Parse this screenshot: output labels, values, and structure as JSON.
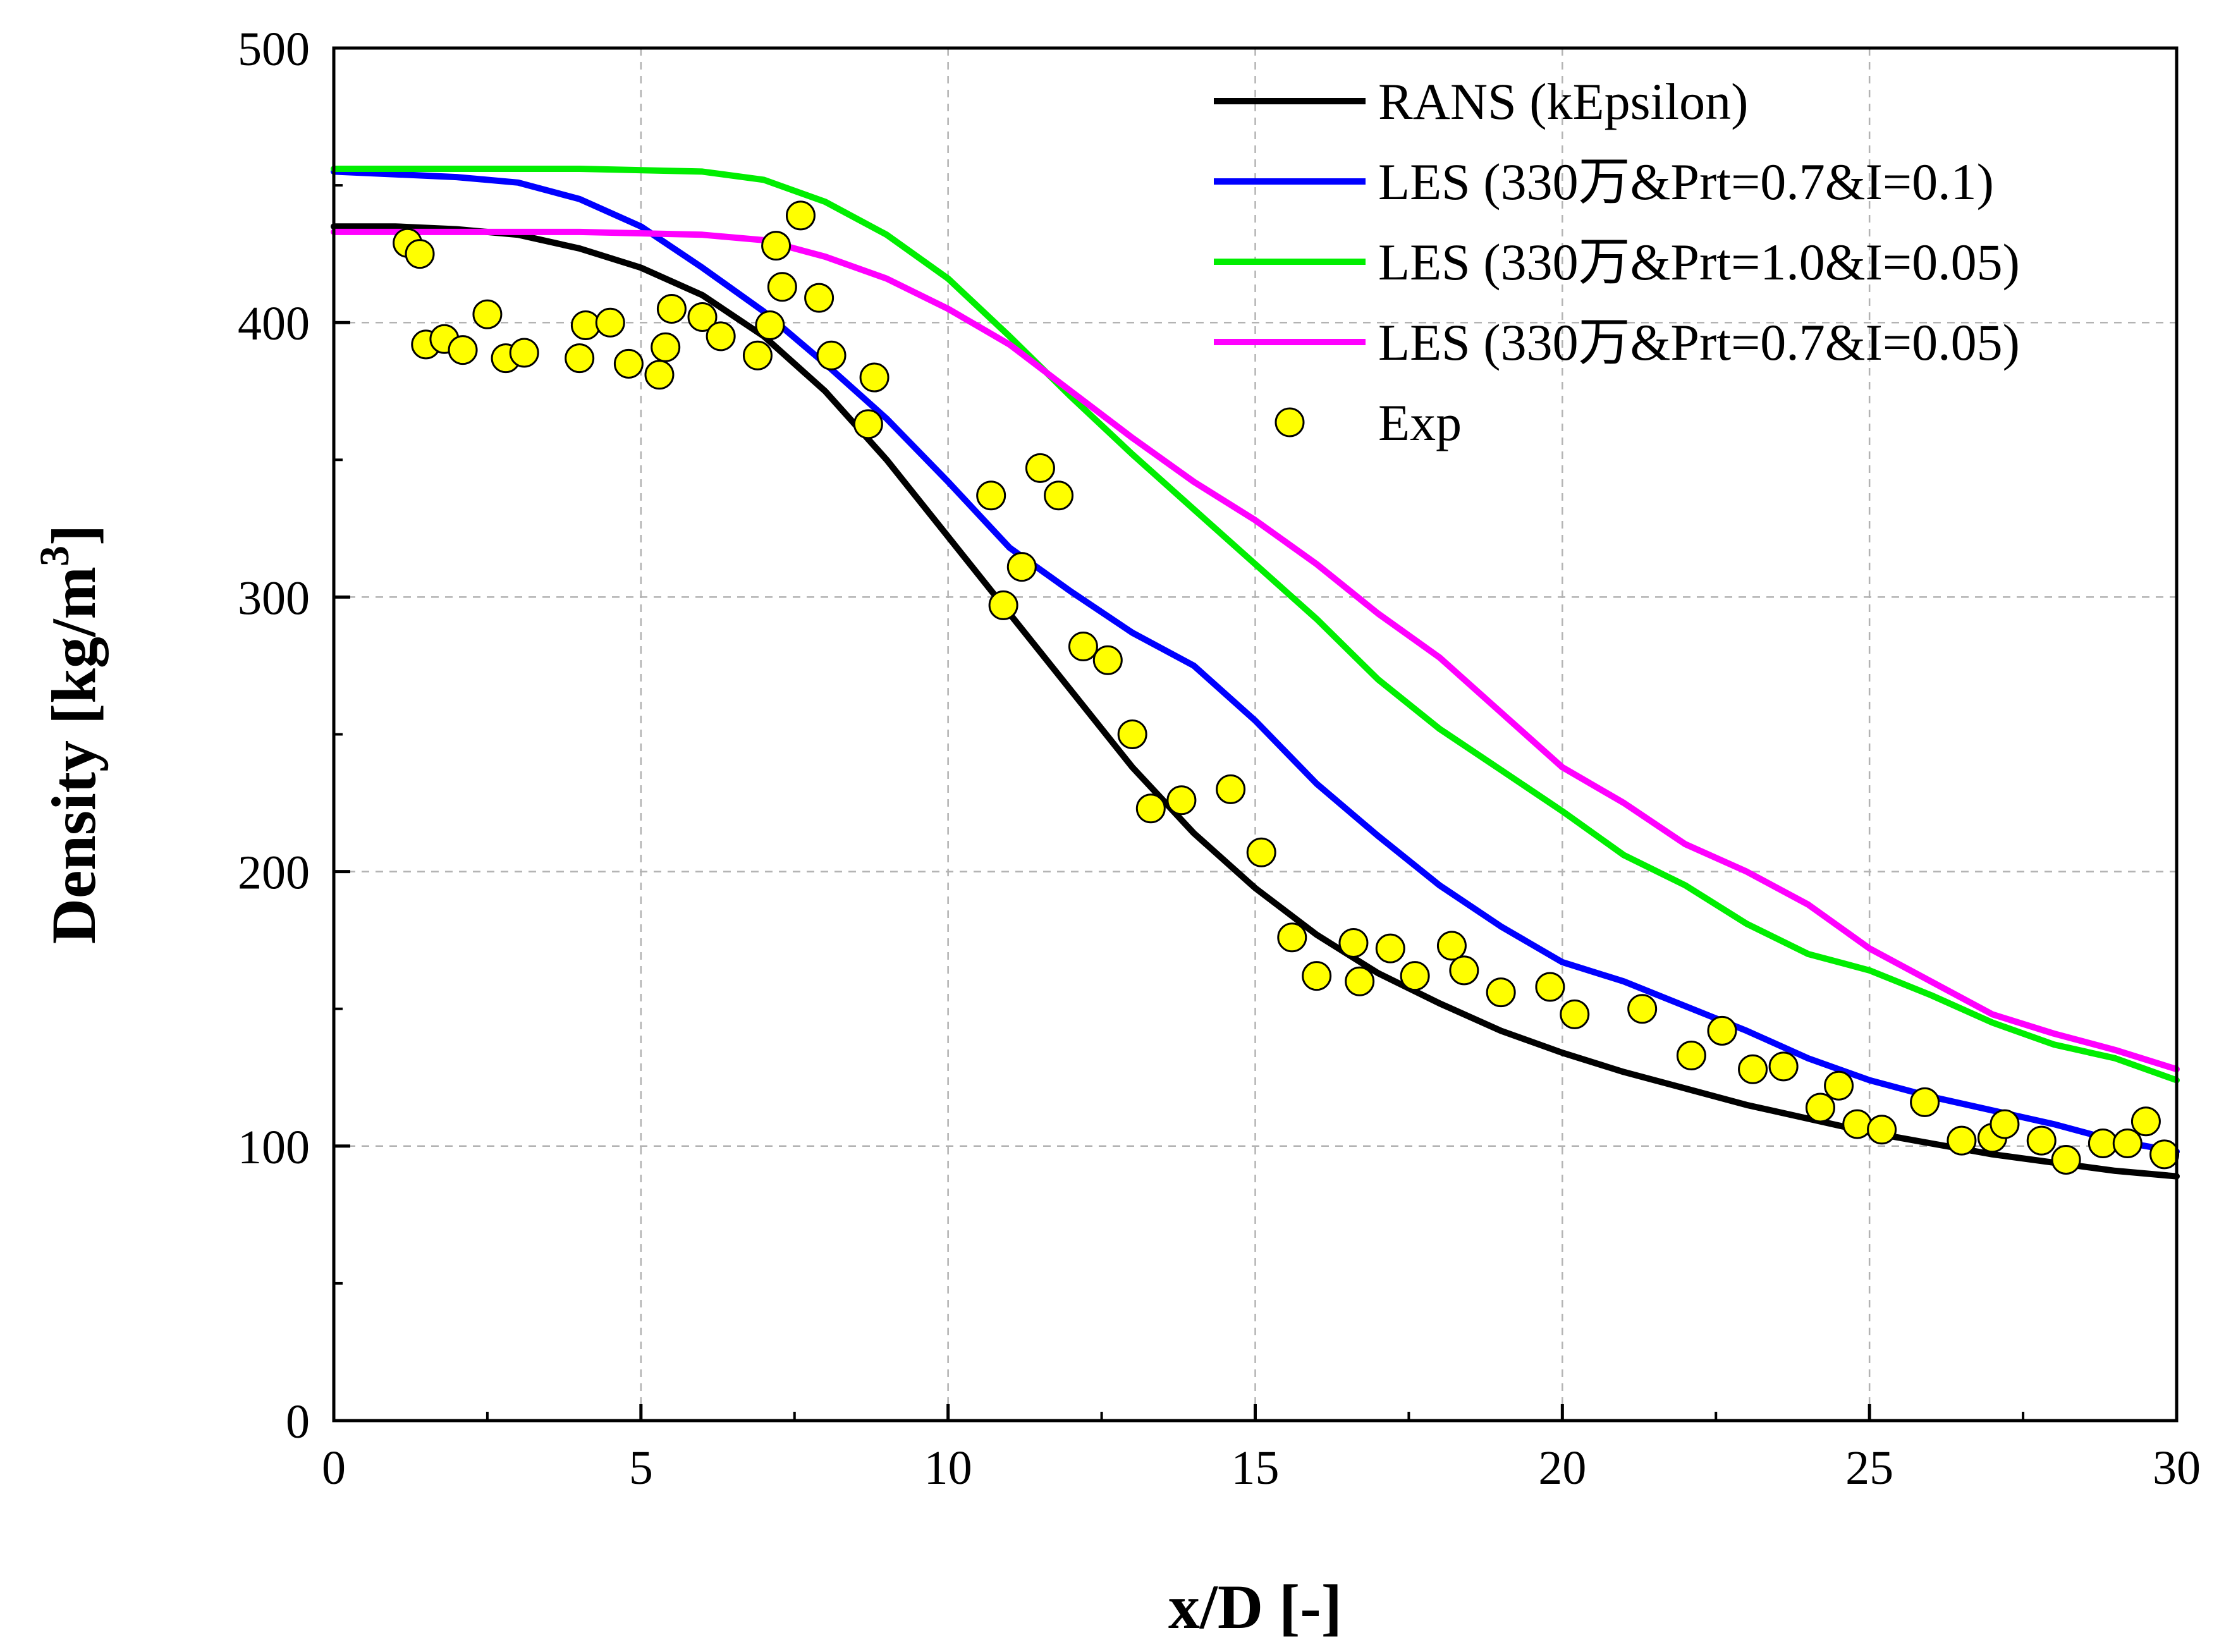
{
  "chart_data": {
    "type": "line",
    "xlabel": "x/D [-]",
    "ylabel_main": "Density [kg/m",
    "ylabel_sup": "3",
    "ylabel_close": "]",
    "xlim": [
      0,
      30
    ],
    "ylim": [
      0,
      500
    ],
    "x_ticks": [
      0,
      5,
      10,
      15,
      20,
      25,
      30
    ],
    "y_ticks": [
      0,
      100,
      200,
      300,
      400,
      500
    ],
    "x_tick_labels": [
      "0",
      "5",
      "10",
      "15",
      "20",
      "25",
      "30"
    ],
    "y_tick_labels": [
      "0",
      "100",
      "200",
      "300",
      "400",
      "500"
    ],
    "grid": true,
    "legend_position": "top-right",
    "series": [
      {
        "name": "RANS (kEpsilon)",
        "color": "#000000",
        "type": "line",
        "points": [
          [
            0,
            435
          ],
          [
            1,
            435
          ],
          [
            2,
            434
          ],
          [
            3,
            432
          ],
          [
            4,
            427
          ],
          [
            5,
            420
          ],
          [
            6,
            410
          ],
          [
            7,
            395
          ],
          [
            8,
            375
          ],
          [
            9,
            350
          ],
          [
            10,
            322
          ],
          [
            11,
            294
          ],
          [
            12,
            266
          ],
          [
            13,
            238
          ],
          [
            14,
            214
          ],
          [
            15,
            194
          ],
          [
            16,
            177
          ],
          [
            17,
            163
          ],
          [
            18,
            152
          ],
          [
            19,
            142
          ],
          [
            20,
            134
          ],
          [
            21,
            127
          ],
          [
            22,
            121
          ],
          [
            23,
            115
          ],
          [
            24,
            110
          ],
          [
            25,
            105
          ],
          [
            26,
            101
          ],
          [
            27,
            97
          ],
          [
            28,
            94
          ],
          [
            29,
            91
          ],
          [
            30,
            89
          ]
        ]
      },
      {
        "name": "LES (330万&Prt=0.7&I=0.1)",
        "color": "#0000ff",
        "type": "line",
        "points": [
          [
            0,
            455
          ],
          [
            1,
            454
          ],
          [
            2,
            453
          ],
          [
            3,
            451
          ],
          [
            3.5,
            448
          ],
          [
            4,
            445
          ],
          [
            5,
            435
          ],
          [
            6,
            420
          ],
          [
            7,
            404
          ],
          [
            8,
            385
          ],
          [
            9,
            365
          ],
          [
            10,
            342
          ],
          [
            11,
            318
          ],
          [
            12,
            302
          ],
          [
            13,
            287
          ],
          [
            14,
            275
          ],
          [
            15,
            255
          ],
          [
            16,
            232
          ],
          [
            17,
            213
          ],
          [
            18,
            195
          ],
          [
            19,
            180
          ],
          [
            20,
            167
          ],
          [
            21,
            160
          ],
          [
            22,
            151
          ],
          [
            23,
            142
          ],
          [
            24,
            132
          ],
          [
            25,
            124
          ],
          [
            26,
            118
          ],
          [
            27,
            113
          ],
          [
            28,
            108
          ],
          [
            29,
            102
          ],
          [
            30,
            98
          ]
        ]
      },
      {
        "name": "LES (330万&Prt=1.0&I=0.05)",
        "color": "#00ee00",
        "type": "line",
        "points": [
          [
            0,
            456
          ],
          [
            2,
            456
          ],
          [
            4,
            456
          ],
          [
            6,
            455
          ],
          [
            7,
            452
          ],
          [
            8,
            444
          ],
          [
            9,
            432
          ],
          [
            10,
            416
          ],
          [
            11,
            395
          ],
          [
            12,
            373
          ],
          [
            13,
            352
          ],
          [
            14,
            332
          ],
          [
            15,
            312
          ],
          [
            16,
            292
          ],
          [
            17,
            270
          ],
          [
            18,
            252
          ],
          [
            19,
            237
          ],
          [
            20,
            222
          ],
          [
            21,
            206
          ],
          [
            22,
            195
          ],
          [
            23,
            181
          ],
          [
            24,
            170
          ],
          [
            25,
            164
          ],
          [
            26,
            155
          ],
          [
            27,
            145
          ],
          [
            28,
            137
          ],
          [
            29,
            132
          ],
          [
            30,
            124
          ]
        ]
      },
      {
        "name": "LES (330万&Prt=0.7&I=0.05)",
        "color": "#ff00ff",
        "type": "line",
        "points": [
          [
            0,
            433
          ],
          [
            2,
            433
          ],
          [
            4,
            433
          ],
          [
            6,
            432
          ],
          [
            7,
            430
          ],
          [
            8,
            424
          ],
          [
            9,
            416
          ],
          [
            10,
            405
          ],
          [
            11,
            392
          ],
          [
            12,
            375
          ],
          [
            13,
            358
          ],
          [
            14,
            342
          ],
          [
            15,
            328
          ],
          [
            16,
            312
          ],
          [
            17,
            294
          ],
          [
            18,
            278
          ],
          [
            19,
            258
          ],
          [
            20,
            238
          ],
          [
            21,
            225
          ],
          [
            22,
            210
          ],
          [
            23,
            200
          ],
          [
            24,
            188
          ],
          [
            25,
            172
          ],
          [
            26,
            160
          ],
          [
            27,
            148
          ],
          [
            28,
            141
          ],
          [
            29,
            135
          ],
          [
            30,
            128
          ]
        ]
      },
      {
        "name": "Exp",
        "color": "#ffff00",
        "type": "scatter",
        "points": [
          [
            1.2,
            429
          ],
          [
            1.4,
            425
          ],
          [
            1.5,
            392
          ],
          [
            1.8,
            394
          ],
          [
            2.1,
            390
          ],
          [
            2.5,
            403
          ],
          [
            2.8,
            387
          ],
          [
            3.1,
            389
          ],
          [
            4.0,
            387
          ],
          [
            4.1,
            399
          ],
          [
            4.5,
            400
          ],
          [
            4.8,
            385
          ],
          [
            5.3,
            381
          ],
          [
            5.5,
            405
          ],
          [
            5.4,
            391
          ],
          [
            6.0,
            402
          ],
          [
            6.3,
            395
          ],
          [
            6.9,
            388
          ],
          [
            7.1,
            399
          ],
          [
            7.2,
            428
          ],
          [
            7.3,
            413
          ],
          [
            7.6,
            439
          ],
          [
            7.9,
            409
          ],
          [
            8.1,
            388
          ],
          [
            8.8,
            380
          ],
          [
            8.7,
            363
          ],
          [
            10.7,
            337
          ],
          [
            10.9,
            297
          ],
          [
            11.2,
            311
          ],
          [
            11.5,
            347
          ],
          [
            11.8,
            337
          ],
          [
            12.2,
            282
          ],
          [
            12.6,
            277
          ],
          [
            13.0,
            250
          ],
          [
            13.3,
            223
          ],
          [
            13.8,
            226
          ],
          [
            14.6,
            230
          ],
          [
            15.1,
            207
          ],
          [
            15.6,
            176
          ],
          [
            16.0,
            162
          ],
          [
            16.6,
            174
          ],
          [
            16.7,
            160
          ],
          [
            17.2,
            172
          ],
          [
            17.6,
            162
          ],
          [
            18.2,
            173
          ],
          [
            18.4,
            164
          ],
          [
            19.0,
            156
          ],
          [
            19.8,
            158
          ],
          [
            20.2,
            148
          ],
          [
            21.3,
            150
          ],
          [
            22.1,
            133
          ],
          [
            22.6,
            142
          ],
          [
            23.1,
            128
          ],
          [
            23.6,
            129
          ],
          [
            24.2,
            114
          ],
          [
            24.5,
            122
          ],
          [
            24.8,
            108
          ],
          [
            25.2,
            106
          ],
          [
            25.9,
            116
          ],
          [
            26.5,
            102
          ],
          [
            27.0,
            103
          ],
          [
            27.2,
            108
          ],
          [
            27.8,
            102
          ],
          [
            28.2,
            95
          ],
          [
            28.8,
            101
          ],
          [
            29.2,
            101
          ],
          [
            29.5,
            109
          ],
          [
            29.8,
            97
          ]
        ]
      }
    ]
  }
}
